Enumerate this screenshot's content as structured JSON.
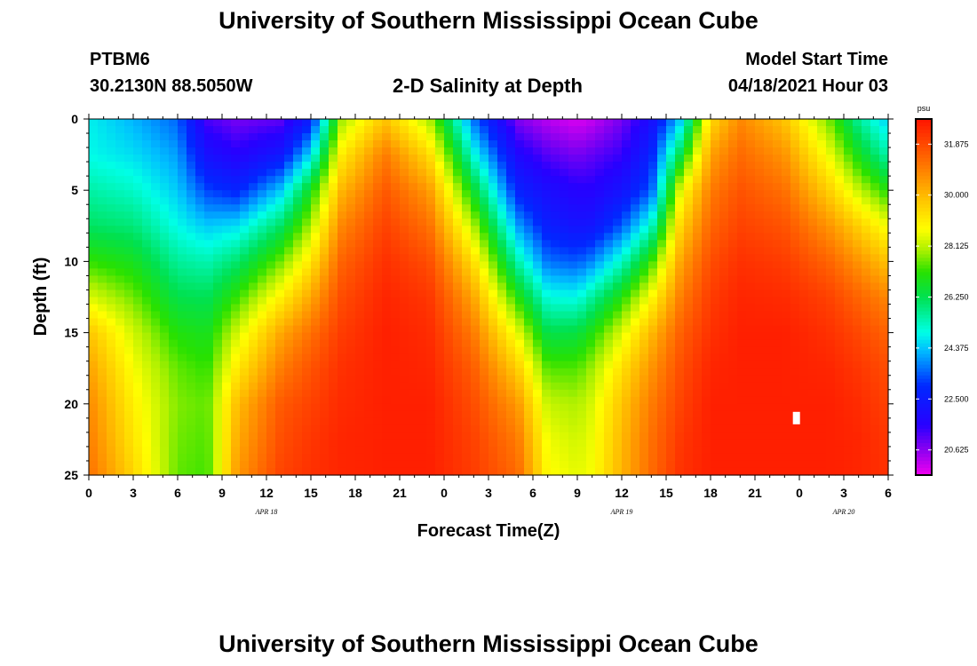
{
  "header": {
    "title": "University of Southern Mississippi Ocean Cube",
    "station_id": "PTBM6",
    "station_coords": "30.2130N  88.5050W",
    "plot_title": "2-D Salinity at Depth",
    "model_start_label": "Model Start Time",
    "model_start_time": "04/18/2021 Hour 03"
  },
  "footer": {
    "title": "University of Southern Mississippi Ocean Cube"
  },
  "chart_data": {
    "type": "heatmap",
    "title": "2-D Salinity at Depth",
    "xlabel": "Forecast Time(Z)",
    "ylabel": "Depth (ft)",
    "x_ticks": [
      "0",
      "3",
      "6",
      "9",
      "12",
      "15",
      "18",
      "21",
      "0",
      "3",
      "6",
      "9",
      "12",
      "15",
      "18",
      "21",
      "0",
      "3",
      "6"
    ],
    "x_range_hours": [
      0,
      54
    ],
    "date_labels": [
      {
        "hour": 12,
        "text": "APR 18"
      },
      {
        "hour": 36,
        "text": "APR 19"
      },
      {
        "hour": 51,
        "text": "APR 20"
      }
    ],
    "y_ticks": [
      "0",
      "5",
      "10",
      "15",
      "20",
      "25"
    ],
    "y_range_ft": [
      0,
      25
    ],
    "colorbar": {
      "unit": "psu",
      "range": [
        19.7,
        32.8
      ],
      "labels": [
        "31.875",
        "30.000",
        "28.125",
        "26.250",
        "24.375",
        "22.500",
        "20.625"
      ],
      "label_values": [
        31.875,
        30.0,
        28.125,
        26.25,
        24.375,
        22.5,
        20.625
      ]
    },
    "salinity_field": {
      "description": "Salinity (psu) sampled on hour x depth grid, linearly interpolated",
      "hours": [
        0,
        3,
        6,
        8,
        10,
        13,
        15,
        17,
        20,
        23,
        26,
        29,
        31,
        33,
        34,
        36,
        38,
        40,
        42,
        44,
        47,
        50,
        52,
        54
      ],
      "depths_ft": [
        0,
        2.5,
        5,
        7.5,
        10,
        12.5,
        15,
        17.5,
        20,
        22.5,
        25
      ],
      "values": [
        [
          24.8,
          24.9,
          25.5,
          26.1,
          27.2,
          28.4,
          29.8,
          30.4,
          30.8,
          31.0,
          31.2
        ],
        [
          24.2,
          24.6,
          25.2,
          25.9,
          26.8,
          27.6,
          28.3,
          28.7,
          29.0,
          29.2,
          29.5
        ],
        [
          23.5,
          24.0,
          24.4,
          24.9,
          25.6,
          26.3,
          27.0,
          27.5,
          27.7,
          27.6,
          27.5
        ],
        [
          21.2,
          22.1,
          23.2,
          24.4,
          25.4,
          26.2,
          26.8,
          27.2,
          27.5,
          27.4,
          27.3
        ],
        [
          20.8,
          21.6,
          22.8,
          24.6,
          26.0,
          27.2,
          28.3,
          29.1,
          29.9,
          30.2,
          30.5
        ],
        [
          21.0,
          22.4,
          24.4,
          26.1,
          27.6,
          29.0,
          30.3,
          31.0,
          31.6,
          31.8,
          32.0
        ],
        [
          22.6,
          24.6,
          26.8,
          28.0,
          29.2,
          30.3,
          31.2,
          31.7,
          32.0,
          32.2,
          32.3
        ],
        [
          27.8,
          29.0,
          30.0,
          30.8,
          31.4,
          31.8,
          32.1,
          32.3,
          32.4,
          32.5,
          32.5
        ],
        [
          29.8,
          31.0,
          31.6,
          32.0,
          32.3,
          32.5,
          32.6,
          32.6,
          32.6,
          32.6,
          32.6
        ],
        [
          28.0,
          29.4,
          30.5,
          31.2,
          31.8,
          32.2,
          32.4,
          32.5,
          32.6,
          32.6,
          32.6
        ],
        [
          23.6,
          25.0,
          26.6,
          28.0,
          29.3,
          30.3,
          31.0,
          31.5,
          31.8,
          32.0,
          32.1
        ],
        [
          20.7,
          21.8,
          22.7,
          24.0,
          25.4,
          27.0,
          28.5,
          29.6,
          30.5,
          31.0,
          31.3
        ],
        [
          20.2,
          21.1,
          22.0,
          22.6,
          23.6,
          25.0,
          26.3,
          27.4,
          28.2,
          28.6,
          28.8
        ],
        [
          19.9,
          20.8,
          21.6,
          22.2,
          23.4,
          24.9,
          26.4,
          27.4,
          28.0,
          28.3,
          28.5
        ],
        [
          20.1,
          21.0,
          21.6,
          22.3,
          23.8,
          25.6,
          27.0,
          27.9,
          28.4,
          28.6,
          28.7
        ],
        [
          20.8,
          21.4,
          22.2,
          23.4,
          25.2,
          27.0,
          28.4,
          29.3,
          29.8,
          30.0,
          30.1
        ],
        [
          22.0,
          22.8,
          23.4,
          25.2,
          27.2,
          28.8,
          30.0,
          30.6,
          31.0,
          31.2,
          31.3
        ],
        [
          24.4,
          26.4,
          28.6,
          29.6,
          30.4,
          31.0,
          31.5,
          31.8,
          32.0,
          32.2,
          32.3
        ],
        [
          29.4,
          30.4,
          31.0,
          31.4,
          31.8,
          32.1,
          32.3,
          32.5,
          32.6,
          32.6,
          32.6
        ],
        [
          30.8,
          31.3,
          31.7,
          32.0,
          32.3,
          32.5,
          32.6,
          32.6,
          32.6,
          32.6,
          32.6
        ],
        [
          29.8,
          30.6,
          31.2,
          31.7,
          32.1,
          32.4,
          32.6,
          32.6,
          32.6,
          32.6,
          32.6
        ],
        [
          27.6,
          28.6,
          29.6,
          30.6,
          31.4,
          32.0,
          32.3,
          32.5,
          32.6,
          32.6,
          32.6
        ],
        [
          25.6,
          26.8,
          28.2,
          29.6,
          30.6,
          31.4,
          31.9,
          32.2,
          32.4,
          32.5,
          32.5
        ],
        [
          24.4,
          25.4,
          27.0,
          28.6,
          29.8,
          30.8,
          31.4,
          31.8,
          32.0,
          32.2,
          32.3
        ]
      ]
    },
    "annotations": [
      {
        "type": "marker",
        "hour": 47.8,
        "depth_ft": 21,
        "color": "#ffffff"
      }
    ]
  }
}
